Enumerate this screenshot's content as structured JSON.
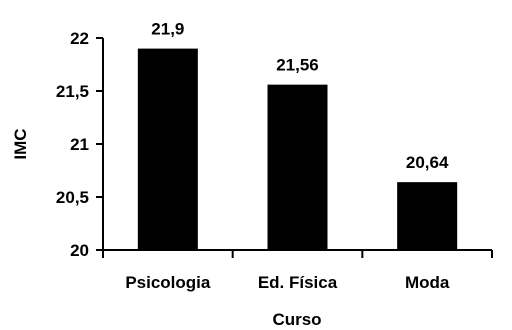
{
  "chart_data": {
    "type": "bar",
    "categories": [
      "Psicologia",
      "Ed. Física",
      "Moda"
    ],
    "values": [
      21.9,
      21.56,
      20.64
    ],
    "value_labels": [
      "21,9",
      "21,56",
      "20,64"
    ],
    "xlabel": "Curso",
    "ylabel": "IMC",
    "ylim": [
      20,
      22
    ],
    "yticks": [
      20,
      20.5,
      21,
      21.5,
      22
    ],
    "ytick_labels": [
      "20",
      "20,5",
      "21",
      "21,5",
      "22"
    ],
    "grid": false,
    "legend": "none",
    "bar_color": "#000000",
    "axis_color": "#000000"
  }
}
